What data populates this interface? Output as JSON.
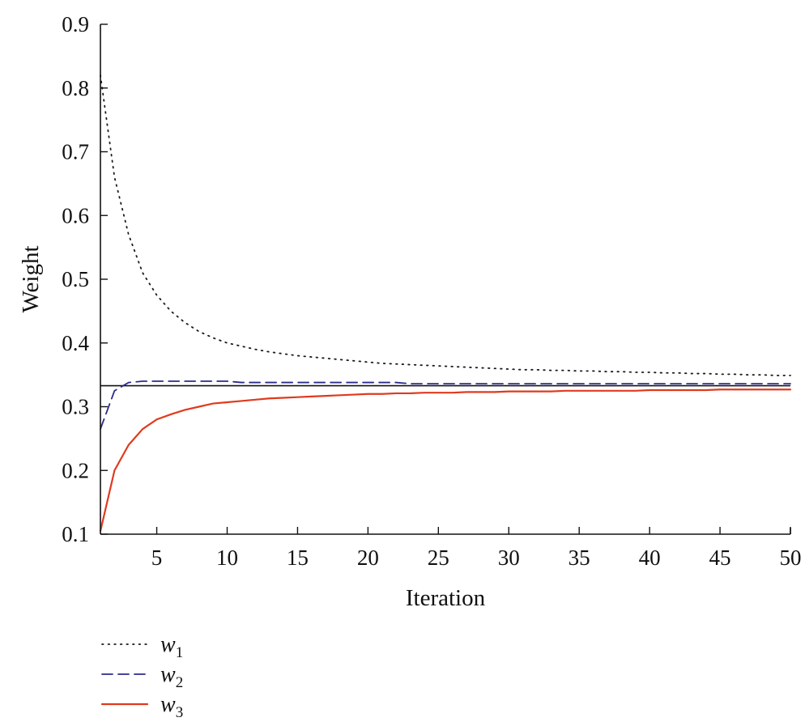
{
  "chart_data": {
    "type": "line",
    "title": "",
    "xlabel": "Iteration",
    "ylabel": "Weight",
    "xlim": [
      1,
      50
    ],
    "ylim": [
      0.1,
      0.9
    ],
    "xticks": [
      5,
      10,
      15,
      20,
      25,
      30,
      35,
      40,
      45,
      50
    ],
    "xtick_labels": [
      "5",
      "10",
      "15",
      "20",
      "25",
      "30",
      "35",
      "40",
      "45",
      "50"
    ],
    "yticks": [
      0.1,
      0.2,
      0.3,
      0.4,
      0.5,
      0.6,
      0.7,
      0.8,
      0.9
    ],
    "ytick_labels": [
      "0.1",
      "0.2",
      "0.3",
      "0.4",
      "0.5",
      "0.6",
      "0.7",
      "0.8",
      "0.9"
    ],
    "grid": false,
    "legend_position": "bottom-left, below plot",
    "reference_line": {
      "y": 0.333,
      "color": "#111111"
    },
    "x": [
      1,
      2,
      3,
      4,
      5,
      6,
      7,
      8,
      9,
      10,
      11,
      12,
      13,
      14,
      15,
      16,
      17,
      18,
      19,
      20,
      21,
      22,
      23,
      24,
      25,
      26,
      27,
      28,
      29,
      30,
      31,
      32,
      33,
      34,
      35,
      36,
      37,
      38,
      39,
      40,
      41,
      42,
      43,
      44,
      45,
      46,
      47,
      48,
      49,
      50
    ],
    "series": [
      {
        "name": "w",
        "subscript": "1",
        "style": "dotted",
        "color": "#1a1a1a",
        "values": [
          0.82,
          0.66,
          0.57,
          0.51,
          0.475,
          0.45,
          0.432,
          0.418,
          0.408,
          0.4,
          0.395,
          0.39,
          0.386,
          0.383,
          0.38,
          0.378,
          0.376,
          0.374,
          0.372,
          0.37,
          0.368,
          0.367,
          0.366,
          0.365,
          0.364,
          0.363,
          0.362,
          0.361,
          0.36,
          0.359,
          0.358,
          0.358,
          0.357,
          0.357,
          0.356,
          0.356,
          0.355,
          0.355,
          0.354,
          0.354,
          0.353,
          0.353,
          0.352,
          0.352,
          0.351,
          0.351,
          0.35,
          0.35,
          0.349,
          0.349
        ]
      },
      {
        "name": "w",
        "subscript": "2",
        "style": "dashed",
        "color": "#2b2b8a",
        "values": [
          0.265,
          0.325,
          0.338,
          0.34,
          0.34,
          0.34,
          0.34,
          0.34,
          0.34,
          0.34,
          0.338,
          0.338,
          0.338,
          0.338,
          0.338,
          0.338,
          0.338,
          0.338,
          0.338,
          0.338,
          0.338,
          0.338,
          0.336,
          0.336,
          0.336,
          0.336,
          0.336,
          0.336,
          0.336,
          0.336,
          0.336,
          0.336,
          0.336,
          0.336,
          0.336,
          0.336,
          0.336,
          0.336,
          0.336,
          0.336,
          0.336,
          0.336,
          0.336,
          0.336,
          0.336,
          0.336,
          0.336,
          0.336,
          0.336,
          0.336
        ]
      },
      {
        "name": "w",
        "subscript": "3",
        "style": "solid",
        "color": "#e03a1e",
        "values": [
          0.105,
          0.2,
          0.24,
          0.265,
          0.28,
          0.288,
          0.295,
          0.3,
          0.305,
          0.307,
          0.309,
          0.311,
          0.313,
          0.314,
          0.315,
          0.316,
          0.317,
          0.318,
          0.319,
          0.32,
          0.32,
          0.321,
          0.321,
          0.322,
          0.322,
          0.322,
          0.323,
          0.323,
          0.323,
          0.324,
          0.324,
          0.324,
          0.324,
          0.325,
          0.325,
          0.325,
          0.325,
          0.325,
          0.325,
          0.326,
          0.326,
          0.326,
          0.326,
          0.326,
          0.327,
          0.327,
          0.327,
          0.327,
          0.327,
          0.327
        ]
      }
    ]
  }
}
